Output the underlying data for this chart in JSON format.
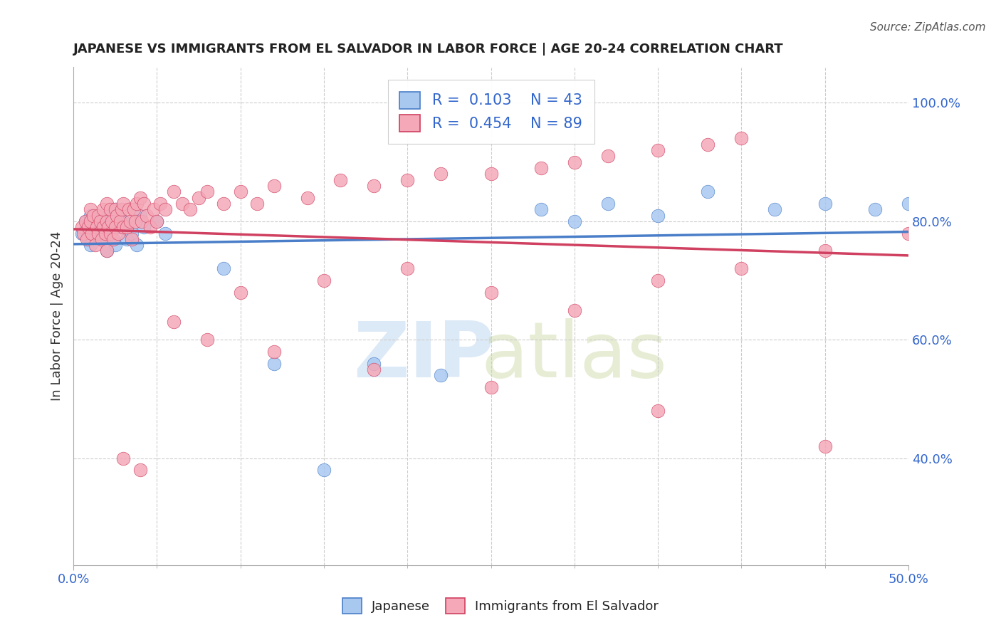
{
  "title": "JAPANESE VS IMMIGRANTS FROM EL SALVADOR IN LABOR FORCE | AGE 20-24 CORRELATION CHART",
  "source_text": "Source: ZipAtlas.com",
  "ylabel": "In Labor Force | Age 20-24",
  "xlim": [
    0.0,
    0.5
  ],
  "ylim": [
    0.22,
    1.06
  ],
  "ytick_labels": [
    "40.0%",
    "60.0%",
    "80.0%",
    "100.0%"
  ],
  "ytick_values": [
    0.4,
    0.6,
    0.8,
    1.0
  ],
  "legend_R_blue": "0.103",
  "legend_N_blue": "43",
  "legend_R_pink": "0.454",
  "legend_N_pink": "89",
  "blue_color": "#A8C8F0",
  "pink_color": "#F4A8B8",
  "blue_line_color": "#4A7EC8",
  "pink_line_color": "#D04060",
  "japanese_x": [
    0.005,
    0.007,
    0.008,
    0.009,
    0.01,
    0.01,
    0.012,
    0.013,
    0.015,
    0.016,
    0.017,
    0.018,
    0.019,
    0.02,
    0.02,
    0.021,
    0.022,
    0.023,
    0.025,
    0.025,
    0.028,
    0.03,
    0.032,
    0.035,
    0.038,
    0.04,
    0.042,
    0.05,
    0.055,
    0.09,
    0.12,
    0.15,
    0.18,
    0.22,
    0.28,
    0.3,
    0.32,
    0.35,
    0.38,
    0.42,
    0.45,
    0.48,
    0.5
  ],
  "japanese_y": [
    0.78,
    0.8,
    0.79,
    0.77,
    0.76,
    0.81,
    0.78,
    0.79,
    0.8,
    0.77,
    0.79,
    0.78,
    0.8,
    0.79,
    0.75,
    0.81,
    0.78,
    0.77,
    0.82,
    0.76,
    0.79,
    0.8,
    0.77,
    0.78,
    0.76,
    0.81,
    0.79,
    0.8,
    0.78,
    0.72,
    0.56,
    0.38,
    0.56,
    0.54,
    0.82,
    0.8,
    0.83,
    0.81,
    0.85,
    0.82,
    0.83,
    0.82,
    0.83
  ],
  "salvador_x": [
    0.005,
    0.006,
    0.007,
    0.008,
    0.009,
    0.01,
    0.01,
    0.011,
    0.012,
    0.013,
    0.014,
    0.015,
    0.015,
    0.016,
    0.017,
    0.018,
    0.018,
    0.019,
    0.02,
    0.02,
    0.021,
    0.022,
    0.022,
    0.023,
    0.024,
    0.025,
    0.025,
    0.026,
    0.027,
    0.028,
    0.029,
    0.03,
    0.03,
    0.032,
    0.033,
    0.034,
    0.035,
    0.036,
    0.037,
    0.038,
    0.04,
    0.041,
    0.042,
    0.044,
    0.046,
    0.048,
    0.05,
    0.052,
    0.055,
    0.06,
    0.065,
    0.07,
    0.075,
    0.08,
    0.09,
    0.1,
    0.11,
    0.12,
    0.14,
    0.16,
    0.18,
    0.2,
    0.22,
    0.25,
    0.28,
    0.3,
    0.32,
    0.35,
    0.38,
    0.4,
    0.1,
    0.15,
    0.2,
    0.25,
    0.3,
    0.35,
    0.4,
    0.45,
    0.5,
    0.06,
    0.08,
    0.12,
    0.18,
    0.25,
    0.35,
    0.45,
    0.02,
    0.03,
    0.04
  ],
  "salvador_y": [
    0.79,
    0.78,
    0.8,
    0.77,
    0.79,
    0.8,
    0.82,
    0.78,
    0.81,
    0.76,
    0.79,
    0.78,
    0.81,
    0.8,
    0.77,
    0.79,
    0.82,
    0.78,
    0.8,
    0.83,
    0.79,
    0.78,
    0.82,
    0.8,
    0.77,
    0.82,
    0.79,
    0.81,
    0.78,
    0.8,
    0.82,
    0.79,
    0.83,
    0.79,
    0.82,
    0.8,
    0.77,
    0.82,
    0.8,
    0.83,
    0.84,
    0.8,
    0.83,
    0.81,
    0.79,
    0.82,
    0.8,
    0.83,
    0.82,
    0.85,
    0.83,
    0.82,
    0.84,
    0.85,
    0.83,
    0.85,
    0.83,
    0.86,
    0.84,
    0.87,
    0.86,
    0.87,
    0.88,
    0.88,
    0.89,
    0.9,
    0.91,
    0.92,
    0.93,
    0.94,
    0.68,
    0.7,
    0.72,
    0.68,
    0.65,
    0.7,
    0.72,
    0.75,
    0.78,
    0.63,
    0.6,
    0.58,
    0.55,
    0.52,
    0.48,
    0.42,
    0.75,
    0.4,
    0.38
  ]
}
